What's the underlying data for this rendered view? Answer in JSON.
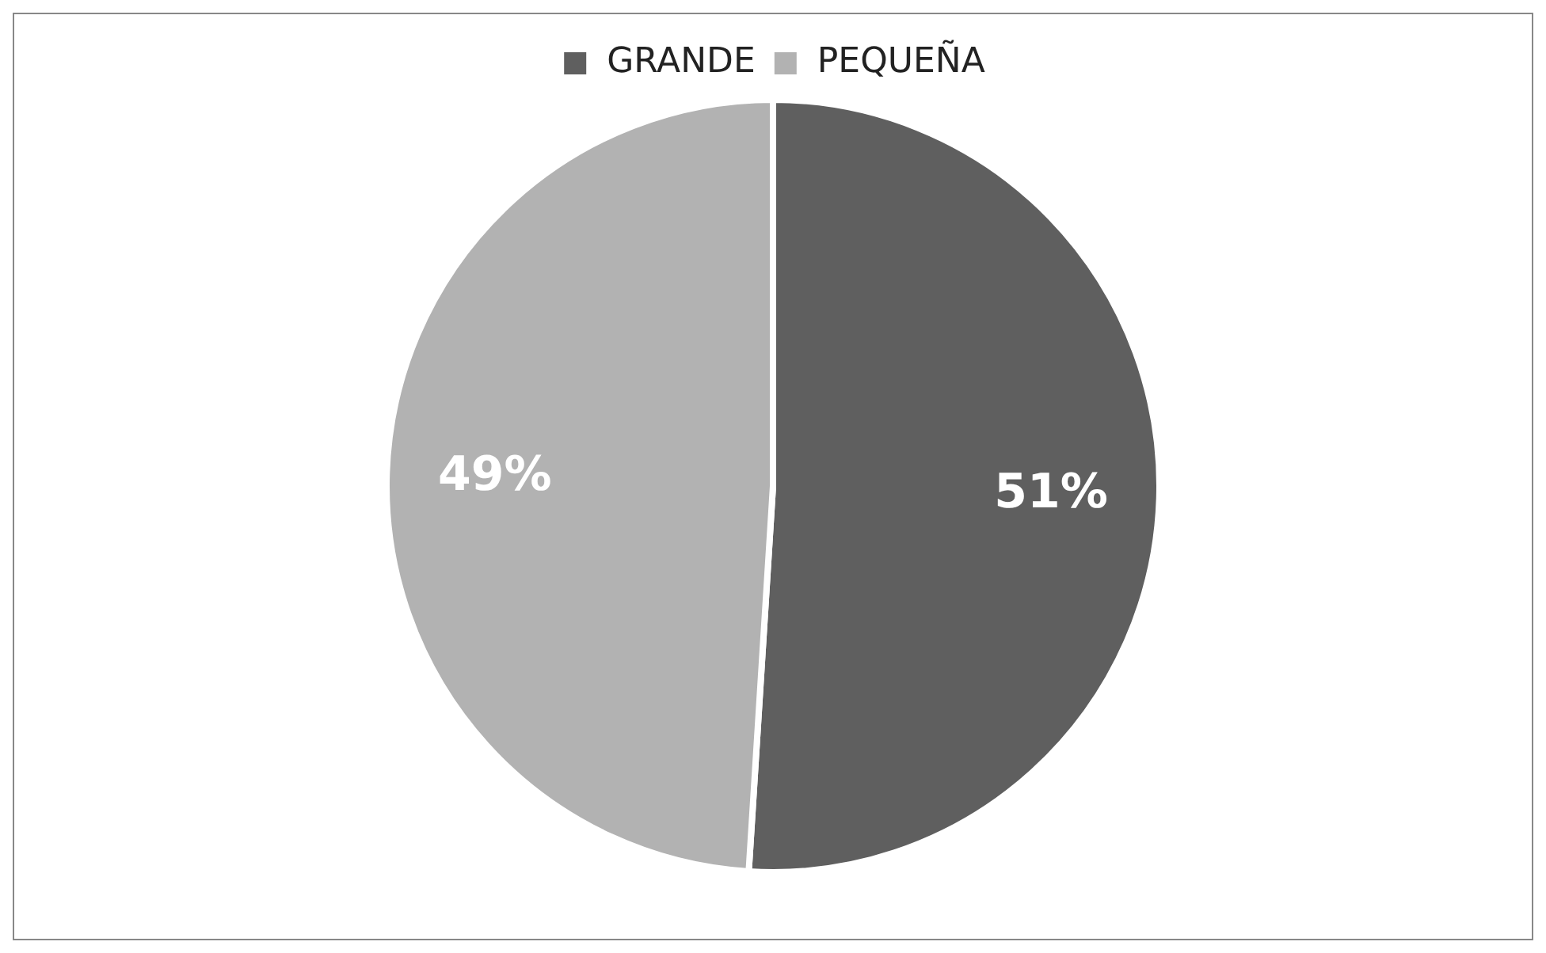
{
  "chart_data": {
    "type": "pie",
    "categories": [
      "GRANDE",
      "PEQUEÑA"
    ],
    "values": [
      51,
      49
    ],
    "colors": [
      "#5f5f5f",
      "#b2b2b2"
    ],
    "value_labels": [
      "51%",
      "49%"
    ],
    "legend": "top"
  }
}
